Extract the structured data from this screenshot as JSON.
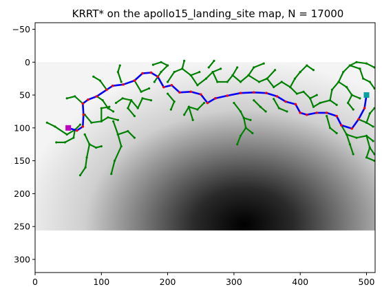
{
  "chart_data": {
    "type": "scatter",
    "title": "KRRT* on the apollo15_landing_site map, N = 17000",
    "xlabel": "",
    "ylabel": "",
    "xlim": [
      0,
      513
    ],
    "ylim": [
      320,
      -60
    ],
    "y_axis_inverted": true,
    "x_ticks": [
      0,
      100,
      200,
      300,
      400,
      500
    ],
    "y_ticks": [
      0,
      50,
      100,
      150,
      200,
      250,
      300
    ],
    "grid": false,
    "legend": "none",
    "background_heightmap": {
      "x_range": [
        0,
        513
      ],
      "y_range": [
        0,
        256
      ],
      "colormap": "gray",
      "dark_center": [
        315,
        245
      ]
    },
    "colors": {
      "tree": "#008000",
      "path_segments": "#0000ff",
      "path_waypoints": "#ff0000",
      "start": "#c000c0",
      "goal": "#00a0a0"
    },
    "start_point": [
      50,
      100
    ],
    "goal_point": [
      500,
      50
    ],
    "path": [
      [
        50,
        100
      ],
      [
        63,
        104
      ],
      [
        72,
        98
      ],
      [
        73,
        80
      ],
      [
        72,
        63
      ],
      [
        80,
        57
      ],
      [
        93,
        52
      ],
      [
        108,
        42
      ],
      [
        117,
        36
      ],
      [
        133,
        34
      ],
      [
        150,
        28
      ],
      [
        162,
        17
      ],
      [
        175,
        16
      ],
      [
        185,
        22
      ],
      [
        194,
        38
      ],
      [
        206,
        35
      ],
      [
        218,
        46
      ],
      [
        235,
        45
      ],
      [
        250,
        49
      ],
      [
        260,
        62
      ],
      [
        272,
        55
      ],
      [
        290,
        51
      ],
      [
        310,
        47
      ],
      [
        330,
        46
      ],
      [
        349,
        47
      ],
      [
        365,
        52
      ],
      [
        378,
        60
      ],
      [
        393,
        64
      ],
      [
        400,
        77
      ],
      [
        410,
        80
      ],
      [
        425,
        77
      ],
      [
        440,
        77
      ],
      [
        455,
        82
      ],
      [
        462,
        96
      ],
      [
        478,
        101
      ],
      [
        488,
        87
      ],
      [
        497,
        70
      ],
      [
        500,
        50
      ]
    ],
    "tree_branches": [
      [
        [
          68,
          95
        ],
        [
          60,
          103
        ],
        [
          48,
          110
        ],
        [
          30,
          98
        ],
        [
          18,
          92
        ]
      ],
      [
        [
          60,
          103
        ],
        [
          58,
          115
        ],
        [
          45,
          122
        ],
        [
          32,
          122
        ]
      ],
      [
        [
          75,
          110
        ],
        [
          82,
          125
        ],
        [
          78,
          145
        ],
        [
          76,
          160
        ],
        [
          68,
          172
        ]
      ],
      [
        [
          82,
          125
        ],
        [
          92,
          130
        ],
        [
          100,
          128
        ]
      ],
      [
        [
          72,
          63
        ],
        [
          60,
          52
        ],
        [
          48,
          55
        ]
      ],
      [
        [
          75,
          80
        ],
        [
          85,
          92
        ],
        [
          100,
          90
        ],
        [
          110,
          84
        ],
        [
          125,
          88
        ]
      ],
      [
        [
          100,
          90
        ],
        [
          100,
          70
        ],
        [
          112,
          68
        ]
      ],
      [
        [
          118,
          90
        ],
        [
          125,
          110
        ],
        [
          130,
          128
        ],
        [
          120,
          150
        ],
        [
          115,
          170
        ]
      ],
      [
        [
          125,
          110
        ],
        [
          140,
          105
        ],
        [
          150,
          115
        ]
      ],
      [
        [
          93,
          52
        ],
        [
          102,
          58
        ],
        [
          110,
          70
        ],
        [
          118,
          75
        ]
      ],
      [
        [
          122,
          62
        ],
        [
          132,
          55
        ],
        [
          145,
          58
        ],
        [
          155,
          70
        ],
        [
          162,
          55
        ],
        [
          175,
          58
        ]
      ],
      [
        [
          145,
          58
        ],
        [
          140,
          70
        ],
        [
          150,
          82
        ]
      ],
      [
        [
          108,
          42
        ],
        [
          98,
          28
        ],
        [
          88,
          22
        ]
      ],
      [
        [
          130,
          30
        ],
        [
          125,
          15
        ],
        [
          128,
          5
        ]
      ],
      [
        [
          150,
          28
        ],
        [
          160,
          45
        ],
        [
          172,
          40
        ]
      ],
      [
        [
          180,
          30
        ],
        [
          190,
          15
        ],
        [
          200,
          5
        ]
      ],
      [
        [
          200,
          30
        ],
        [
          210,
          15
        ],
        [
          222,
          10
        ],
        [
          235,
          20
        ],
        [
          248,
          15
        ]
      ],
      [
        [
          222,
          10
        ],
        [
          225,
          -2
        ]
      ],
      [
        [
          235,
          20
        ],
        [
          245,
          35
        ],
        [
          258,
          25
        ],
        [
          268,
          15
        ],
        [
          280,
          10
        ]
      ],
      [
        [
          268,
          15
        ],
        [
          275,
          30
        ],
        [
          290,
          30
        ],
        [
          298,
          20
        ],
        [
          305,
          8
        ]
      ],
      [
        [
          298,
          20
        ],
        [
          310,
          30
        ],
        [
          322,
          20
        ],
        [
          330,
          8
        ]
      ],
      [
        [
          322,
          20
        ],
        [
          338,
          30
        ],
        [
          350,
          25
        ],
        [
          362,
          12
        ]
      ],
      [
        [
          350,
          25
        ],
        [
          360,
          38
        ],
        [
          372,
          30
        ],
        [
          385,
          38
        ],
        [
          392,
          25
        ],
        [
          400,
          15
        ]
      ],
      [
        [
          385,
          38
        ],
        [
          395,
          48
        ],
        [
          405,
          45
        ],
        [
          415,
          55
        ],
        [
          425,
          50
        ]
      ],
      [
        [
          415,
          55
        ],
        [
          420,
          68
        ],
        [
          430,
          62
        ],
        [
          445,
          58
        ],
        [
          455,
          65
        ]
      ],
      [
        [
          445,
          58
        ],
        [
          448,
          42
        ],
        [
          458,
          30
        ],
        [
          470,
          38
        ]
      ],
      [
        [
          458,
          30
        ],
        [
          465,
          15
        ],
        [
          475,
          5
        ],
        [
          490,
          10
        ]
      ],
      [
        [
          475,
          5
        ],
        [
          485,
          0
        ],
        [
          500,
          2
        ],
        [
          512,
          8
        ]
      ],
      [
        [
          490,
          10
        ],
        [
          495,
          25
        ],
        [
          505,
          30
        ],
        [
          512,
          40
        ]
      ],
      [
        [
          470,
          38
        ],
        [
          478,
          50
        ],
        [
          490,
          55
        ]
      ],
      [
        [
          478,
          50
        ],
        [
          472,
          62
        ],
        [
          480,
          72
        ]
      ],
      [
        [
          440,
          82
        ],
        [
          445,
          100
        ],
        [
          455,
          108
        ]
      ],
      [
        [
          462,
          96
        ],
        [
          470,
          110
        ],
        [
          475,
          125
        ],
        [
          480,
          140
        ]
      ],
      [
        [
          470,
          110
        ],
        [
          485,
          115
        ],
        [
          500,
          112
        ],
        [
          510,
          120
        ]
      ],
      [
        [
          500,
          112
        ],
        [
          505,
          130
        ],
        [
          500,
          145
        ],
        [
          512,
          150
        ]
      ],
      [
        [
          505,
          130
        ],
        [
          512,
          140
        ]
      ],
      [
        [
          488,
          87
        ],
        [
          500,
          92
        ],
        [
          510,
          98
        ]
      ],
      [
        [
          500,
          92
        ],
        [
          505,
          78
        ],
        [
          512,
          70
        ]
      ],
      [
        [
          300,
          62
        ],
        [
          310,
          75
        ],
        [
          315,
          85
        ],
        [
          318,
          100
        ],
        [
          310,
          112
        ],
        [
          305,
          125
        ]
      ],
      [
        [
          315,
          85
        ],
        [
          325,
          88
        ]
      ],
      [
        [
          318,
          100
        ],
        [
          328,
          108
        ]
      ],
      [
        [
          330,
          58
        ],
        [
          340,
          68
        ],
        [
          348,
          75
        ]
      ],
      [
        [
          255,
          62
        ],
        [
          245,
          72
        ],
        [
          232,
          68
        ],
        [
          225,
          80
        ]
      ],
      [
        [
          232,
          68
        ],
        [
          238,
          88
        ]
      ],
      [
        [
          200,
          48
        ],
        [
          210,
          60
        ],
        [
          205,
          72
        ]
      ],
      [
        [
          360,
          56
        ],
        [
          368,
          70
        ],
        [
          380,
          75
        ]
      ],
      [
        [
          200,
          5
        ],
        [
          190,
          0
        ],
        [
          178,
          4
        ]
      ],
      [
        [
          262,
          8
        ],
        [
          270,
          -2
        ]
      ],
      [
        [
          330,
          8
        ],
        [
          345,
          2
        ]
      ],
      [
        [
          400,
          15
        ],
        [
          410,
          5
        ],
        [
          420,
          12
        ]
      ]
    ]
  }
}
